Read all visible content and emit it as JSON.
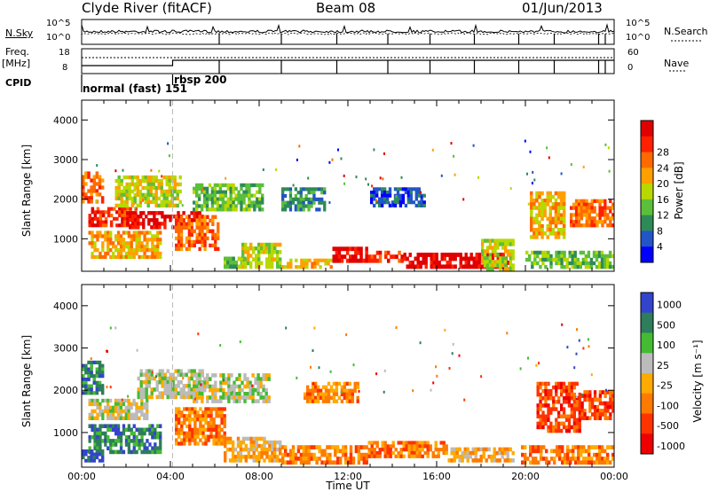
{
  "header": {
    "station": "Clyde River (fitACF)",
    "beam": "Beam 08",
    "date": "01/Jun/2013"
  },
  "strip": {
    "nsky_label": "N.Sky",
    "nsky_ticks": [
      "10^5",
      "10^0"
    ],
    "nsearch_label": "N.Search",
    "nsearch_ticks": [
      "10^5",
      "10^0"
    ],
    "freq_label_1": "Freq.",
    "freq_label_2": "[MHz]",
    "freq_ticks": [
      "18",
      "8"
    ],
    "nave_label": "Nave",
    "nave_ticks": [
      "60",
      "0"
    ],
    "cpid_label": "CPID",
    "cpid_1": "normal (fast) 151",
    "cpid_2": "rbsp 200",
    "cpid_switch_hour": 4.1
  },
  "colors": {
    "power": [
      "#0000ff",
      "#2255c8",
      "#2e8b57",
      "#5bbf3a",
      "#b8d800",
      "#ffa000",
      "#ff6a00",
      "#ff2000",
      "#e00000"
    ],
    "velocity": [
      "#3344cc",
      "#2e7d5b",
      "#44bb33",
      "#bbbbbb",
      "#ffaa00",
      "#ff7a00",
      "#ff3300",
      "#ee0000"
    ]
  },
  "chart_data": [
    {
      "type": "heatmap",
      "name": "power",
      "xlabel": "Time UT",
      "ylabel": "Slant Range [km]",
      "x_ticks": [
        "00:00",
        "04:00",
        "08:00",
        "12:00",
        "16:00",
        "20:00",
        "00:00"
      ],
      "xlim_hours": [
        0,
        24
      ],
      "y_ticks": [
        "1000",
        "2000",
        "3000",
        "4000"
      ],
      "ylim_km": [
        180,
        4500
      ],
      "colorbar_label": "Power [dB]",
      "colorbar_ticks": [
        "4",
        "8",
        "12",
        "16",
        "20",
        "24",
        "28"
      ],
      "bands": [
        {
          "h0": 0.0,
          "h1": 1.0,
          "r0": 1900,
          "r1": 2700,
          "level": 6
        },
        {
          "h0": 0.3,
          "h1": 2.5,
          "r0": 1300,
          "r1": 1800,
          "level": 7
        },
        {
          "h0": 0.3,
          "h1": 3.6,
          "r0": 500,
          "r1": 1200,
          "level": 5
        },
        {
          "h0": 2.0,
          "h1": 5.5,
          "r0": 1250,
          "r1": 1700,
          "level": 8
        },
        {
          "h0": 1.5,
          "h1": 4.5,
          "r0": 1800,
          "r1": 2600,
          "level": 4
        },
        {
          "h0": 4.2,
          "h1": 6.2,
          "r0": 700,
          "r1": 1600,
          "level": 6
        },
        {
          "h0": 5.0,
          "h1": 8.2,
          "r0": 1700,
          "r1": 2400,
          "level": 3
        },
        {
          "h0": 6.4,
          "h1": 7.4,
          "r0": 250,
          "r1": 550,
          "level": 3
        },
        {
          "h0": 7.2,
          "h1": 9.0,
          "r0": 250,
          "r1": 900,
          "level": 4
        },
        {
          "h0": 9.0,
          "h1": 11.3,
          "r0": 250,
          "r1": 500,
          "level": 5
        },
        {
          "h0": 9.0,
          "h1": 11.0,
          "r0": 1700,
          "r1": 2300,
          "level": 2
        },
        {
          "h0": 11.3,
          "h1": 12.9,
          "r0": 400,
          "r1": 800,
          "level": 8
        },
        {
          "h0": 12.9,
          "h1": 14.5,
          "r0": 400,
          "r1": 700,
          "level": 7
        },
        {
          "h0": 14.5,
          "h1": 19.3,
          "r0": 250,
          "r1": 650,
          "level": 8
        },
        {
          "h0": 13.0,
          "h1": 15.5,
          "r0": 1800,
          "r1": 2300,
          "level": 1
        },
        {
          "h0": 18.0,
          "h1": 19.5,
          "r0": 200,
          "r1": 1000,
          "level": 4
        },
        {
          "h0": 20.2,
          "h1": 21.8,
          "r0": 1000,
          "r1": 2200,
          "level": 5
        },
        {
          "h0": 22.0,
          "h1": 24.0,
          "r0": 1300,
          "r1": 2000,
          "level": 6
        },
        {
          "h0": 20.0,
          "h1": 24.0,
          "r0": 250,
          "r1": 700,
          "level": 3
        }
      ]
    },
    {
      "type": "heatmap",
      "name": "velocity",
      "xlabel": "Time UT",
      "ylabel": "Slant Range [km]",
      "x_ticks": [
        "00:00",
        "04:00",
        "08:00",
        "12:00",
        "16:00",
        "20:00",
        "00:00"
      ],
      "xlim_hours": [
        0,
        24
      ],
      "y_ticks": [
        "1000",
        "2000",
        "3000",
        "4000"
      ],
      "ylim_km": [
        180,
        4500
      ],
      "colorbar_label": "Velocity [m s⁻¹]",
      "colorbar_ticks": [
        "1000",
        "500",
        "100",
        "25",
        "-25",
        "-100",
        "-500",
        "-1000"
      ],
      "bands": [
        {
          "h0": 0.0,
          "h1": 1.0,
          "r0": 1900,
          "r1": 2700,
          "level": 1
        },
        {
          "h0": 0.3,
          "h1": 3.0,
          "r0": 1300,
          "r1": 1800,
          "level": 3
        },
        {
          "h0": 0.3,
          "h1": 3.6,
          "r0": 500,
          "r1": 1200,
          "level": 1
        },
        {
          "h0": 0.0,
          "h1": 1.0,
          "r0": 300,
          "r1": 600,
          "level": 0
        },
        {
          "h0": 2.5,
          "h1": 5.5,
          "r0": 1800,
          "r1": 2500,
          "level": 3
        },
        {
          "h0": 4.2,
          "h1": 6.5,
          "r0": 700,
          "r1": 1600,
          "level": 5
        },
        {
          "h0": 5.0,
          "h1": 8.5,
          "r0": 1700,
          "r1": 2400,
          "level": 3
        },
        {
          "h0": 6.4,
          "h1": 9.0,
          "r0": 300,
          "r1": 900,
          "level": 4
        },
        {
          "h0": 9.0,
          "h1": 12.9,
          "r0": 250,
          "r1": 700,
          "level": 5
        },
        {
          "h0": 12.9,
          "h1": 16.5,
          "r0": 400,
          "r1": 800,
          "level": 5
        },
        {
          "h0": 16.5,
          "h1": 19.5,
          "r0": 300,
          "r1": 650,
          "level": 4
        },
        {
          "h0": 10.0,
          "h1": 12.5,
          "r0": 1700,
          "r1": 2200,
          "level": 5
        },
        {
          "h0": 20.5,
          "h1": 22.5,
          "r0": 1000,
          "r1": 2200,
          "level": 6
        },
        {
          "h0": 22.5,
          "h1": 24.0,
          "r0": 1300,
          "r1": 2000,
          "level": 6
        },
        {
          "h0": 19.8,
          "h1": 24.0,
          "r0": 250,
          "r1": 700,
          "level": 5
        }
      ]
    }
  ]
}
